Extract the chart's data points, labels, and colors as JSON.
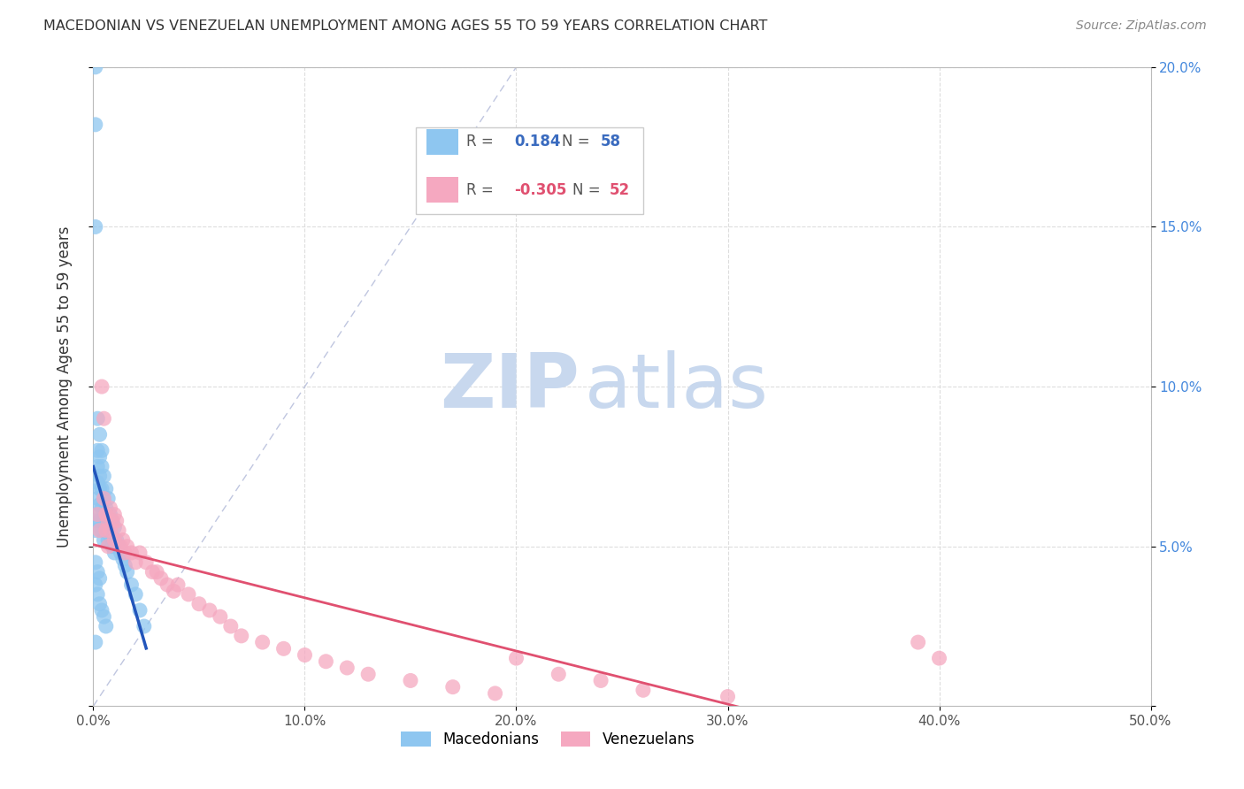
{
  "title": "MACEDONIAN VS VENEZUELAN UNEMPLOYMENT AMONG AGES 55 TO 59 YEARS CORRELATION CHART",
  "source": "Source: ZipAtlas.com",
  "ylabel": "Unemployment Among Ages 55 to 59 years",
  "xlim": [
    0.0,
    0.5
  ],
  "ylim": [
    0.0,
    0.2
  ],
  "macedonian_color": "#8ec6f0",
  "venezuelan_color": "#f5a8c0",
  "macedonian_R": 0.184,
  "macedonian_N": 58,
  "venezuelan_R": -0.305,
  "venezuelan_N": 52,
  "trend_macedonian_color": "#2255bb",
  "trend_venezuelan_color": "#e05070",
  "diagonal_color": "#b0b8d8",
  "watermark_zip": "ZIP",
  "watermark_atlas": "atlas",
  "watermark_color_zip": "#c8d8ee",
  "watermark_color_atlas": "#c8d8ee",
  "right_tick_color": "#4488dd",
  "mac_x": [
    0.001,
    0.001,
    0.001,
    0.001,
    0.001,
    0.002,
    0.002,
    0.002,
    0.002,
    0.002,
    0.002,
    0.003,
    0.003,
    0.003,
    0.003,
    0.003,
    0.003,
    0.004,
    0.004,
    0.004,
    0.004,
    0.004,
    0.005,
    0.005,
    0.005,
    0.005,
    0.006,
    0.006,
    0.006,
    0.007,
    0.007,
    0.007,
    0.008,
    0.008,
    0.009,
    0.009,
    0.01,
    0.01,
    0.011,
    0.012,
    0.013,
    0.014,
    0.015,
    0.016,
    0.018,
    0.02,
    0.022,
    0.024,
    0.001,
    0.001,
    0.002,
    0.002,
    0.003,
    0.003,
    0.004,
    0.005,
    0.006,
    0.001
  ],
  "mac_y": [
    0.2,
    0.182,
    0.15,
    0.058,
    0.055,
    0.09,
    0.08,
    0.075,
    0.07,
    0.065,
    0.06,
    0.085,
    0.078,
    0.072,
    0.068,
    0.063,
    0.058,
    0.08,
    0.075,
    0.068,
    0.062,
    0.055,
    0.072,
    0.065,
    0.058,
    0.052,
    0.068,
    0.062,
    0.055,
    0.065,
    0.058,
    0.052,
    0.06,
    0.053,
    0.058,
    0.05,
    0.056,
    0.048,
    0.052,
    0.05,
    0.048,
    0.046,
    0.044,
    0.042,
    0.038,
    0.035,
    0.03,
    0.025,
    0.045,
    0.038,
    0.042,
    0.035,
    0.04,
    0.032,
    0.03,
    0.028,
    0.025,
    0.02
  ],
  "ven_x": [
    0.002,
    0.003,
    0.004,
    0.005,
    0.005,
    0.006,
    0.006,
    0.007,
    0.007,
    0.008,
    0.008,
    0.009,
    0.01,
    0.01,
    0.011,
    0.012,
    0.013,
    0.014,
    0.015,
    0.016,
    0.018,
    0.02,
    0.022,
    0.025,
    0.028,
    0.03,
    0.032,
    0.035,
    0.038,
    0.04,
    0.045,
    0.05,
    0.055,
    0.06,
    0.065,
    0.07,
    0.08,
    0.09,
    0.1,
    0.11,
    0.12,
    0.13,
    0.15,
    0.17,
    0.19,
    0.2,
    0.22,
    0.24,
    0.26,
    0.3,
    0.39,
    0.4
  ],
  "ven_y": [
    0.06,
    0.055,
    0.1,
    0.065,
    0.09,
    0.06,
    0.055,
    0.058,
    0.05,
    0.062,
    0.055,
    0.058,
    0.06,
    0.052,
    0.058,
    0.055,
    0.05,
    0.052,
    0.048,
    0.05,
    0.048,
    0.045,
    0.048,
    0.045,
    0.042,
    0.042,
    0.04,
    0.038,
    0.036,
    0.038,
    0.035,
    0.032,
    0.03,
    0.028,
    0.025,
    0.022,
    0.02,
    0.018,
    0.016,
    0.014,
    0.012,
    0.01,
    0.008,
    0.006,
    0.004,
    0.015,
    0.01,
    0.008,
    0.005,
    0.003,
    0.02,
    0.015
  ]
}
